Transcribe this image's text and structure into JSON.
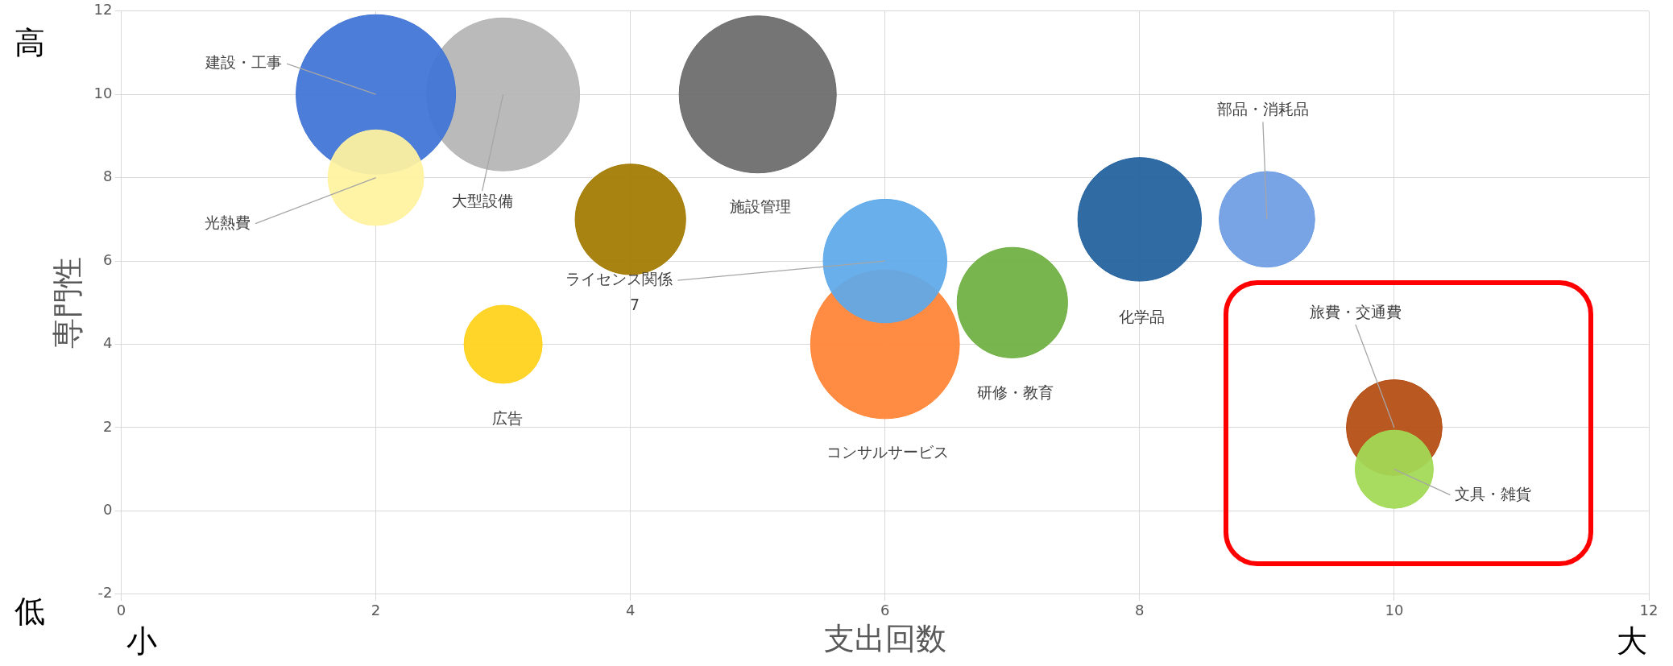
{
  "chart_data": {
    "type": "bubble",
    "xlabel": "支出回数",
    "ylabel": "専門性",
    "x": [
      3,
      5,
      2,
      2,
      4,
      3,
      6,
      6,
      7,
      8,
      9,
      10,
      10
    ],
    "values": [
      10,
      10,
      10,
      8,
      7,
      4,
      4,
      6,
      5,
      7,
      7,
      2,
      1
    ],
    "sizes": [
      0.92,
      0.97,
      1,
      0.36,
      0.48,
      0.24,
      0.87,
      0.6,
      0.48,
      0.6,
      0.36,
      0.36,
      0.24
    ],
    "colors": [
      "#b5b5b5",
      "#6b6b6b",
      "#3f74d6",
      "#fff2a0",
      "#a37a00",
      "#ffd21a",
      "#ff8434",
      "#5ea9ea",
      "#6fb042",
      "#21609e",
      "#6e9de3",
      "#b54c12",
      "#a2da55"
    ],
    "xlim": [
      0,
      12
    ],
    "xticks": [
      0,
      2,
      4,
      6,
      8,
      10,
      12
    ],
    "ylim": [
      -2,
      12
    ],
    "yticks": [
      -2,
      0,
      2,
      4,
      6,
      8,
      10,
      12
    ],
    "grid": true,
    "legend": false,
    "annotations": [
      {
        "text": "大型設備",
        "x": 3,
        "y": 10
      },
      "施設管理",
      {
        "text": "建設・工事",
        "x": 2,
        "y": 10
      },
      {
        "text": "光熱費",
        "x": 2,
        "y": 8
      },
      "7",
      "広告",
      "コンサルサービス",
      {
        "text": "ライセンス関係",
        "x": 6,
        "y": 6
      },
      "研修・教育",
      "化学品",
      {
        "text": "部品・消耗品",
        "x": 9,
        "y": 7
      },
      {
        "text": "旅費・交通費",
        "x": 10,
        "y": 2
      },
      {
        "text": "文具・雑貨",
        "x": 10,
        "y": 1
      },
      "高",
      "低",
      "小",
      "大"
    ]
  }
}
